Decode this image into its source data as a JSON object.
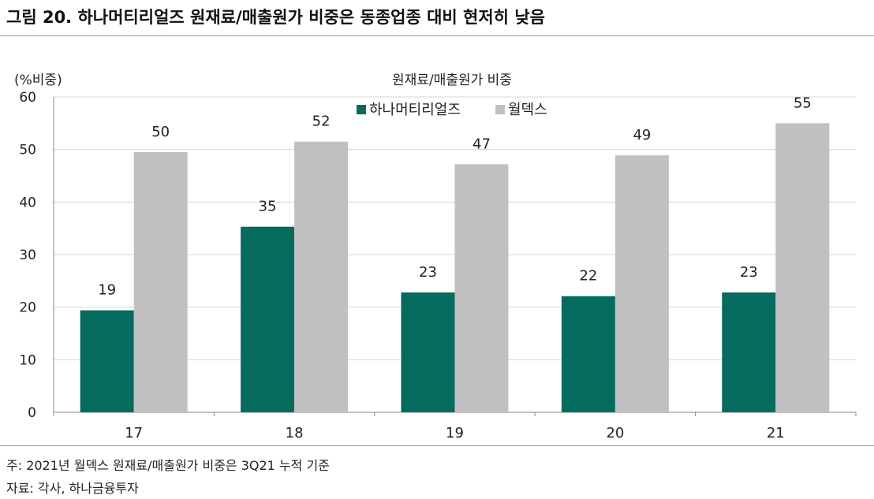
{
  "figure_title": "그림 20. 하나머티리얼즈 원재료/매출원가 비중은 동종업종 대비 현저히 낮음",
  "notes": {
    "note1": "주: 2021년 월덱스 원재료/매출원가 비중은 3Q21 누적 기준",
    "source": "자료: 각사, 하나금융투자"
  },
  "chart_data": {
    "type": "bar",
    "title": "원재료/매출원가 비중",
    "ylabel": "(%비중)",
    "xlabel": "",
    "categories": [
      "17",
      "18",
      "19",
      "20",
      "21"
    ],
    "ylim": [
      0,
      60
    ],
    "yticks": [
      0,
      10,
      20,
      30,
      40,
      50,
      60
    ],
    "grid": true,
    "legend_position": "top-center",
    "series": [
      {
        "name": "하나머티리얼즈",
        "color": "#046b5e",
        "values": [
          19.4,
          35.3,
          22.8,
          22.1,
          22.8
        ],
        "labels": [
          "19",
          "35",
          "23",
          "22",
          "23"
        ]
      },
      {
        "name": "월덱스",
        "color": "#c0c0c0",
        "values": [
          49.5,
          51.5,
          47.2,
          48.9,
          55.0
        ],
        "labels": [
          "50",
          "52",
          "47",
          "49",
          "55"
        ]
      }
    ]
  }
}
